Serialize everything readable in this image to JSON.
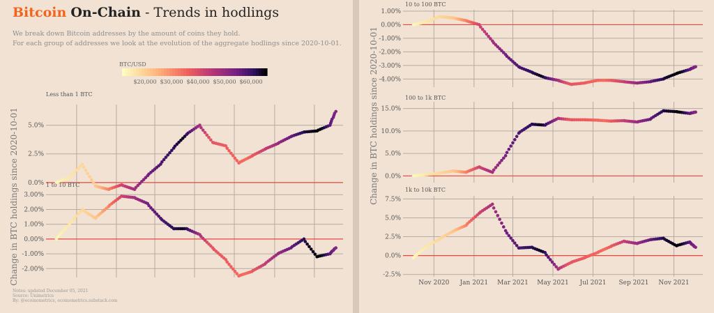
{
  "header": {
    "title_part1": "Bitcoin",
    "title_part2": "On-Chain",
    "title_part3": "- Trends in hodlings",
    "subtitle_line1": "We break down Bitcoin addresses by the amount of coins they hold.",
    "subtitle_line2": "For each group of addresses we look at the evolution of the aggregate hodlings since 2020-10-01."
  },
  "colorbar": {
    "label": "BTC/USD",
    "ticks": [
      "$20,000",
      "$30,000",
      "$40,000",
      "$50,000",
      "$60,000"
    ]
  },
  "ylabel": "Change in BTC holdings since 2020-10-01",
  "notes": {
    "line1": "Notes: updated December 05, 2021",
    "line2": "Source: Unimetrics",
    "line3": "By: @ecoinometrics, ecoinometrics.substack.com"
  },
  "colors": {
    "background": "#f1e2d3",
    "zero_line": "#e8453c",
    "grid": "#b5aba0",
    "accent": "#f0641e"
  },
  "chart_data": [
    {
      "type": "scatter",
      "title": "Less than 1 BTC",
      "ylim": [
        -0.8,
        6.8
      ],
      "yticks": [
        0,
        2.5,
        5
      ],
      "ytick_labels": [
        "0.0%",
        "2.5%",
        "5.0%"
      ],
      "color_by": "BTC/USD price",
      "x": [
        "2020-10-01",
        "2020-10-21",
        "2020-11-10",
        "2020-11-30",
        "2020-12-20",
        "2021-01-09",
        "2021-01-29",
        "2021-02-18",
        "2021-03-10",
        "2021-03-30",
        "2021-04-19",
        "2021-05-09",
        "2021-05-29",
        "2021-06-18",
        "2021-07-08",
        "2021-07-28",
        "2021-08-17",
        "2021-09-06",
        "2021-09-26",
        "2021-10-16",
        "2021-11-05",
        "2021-11-25",
        "2021-12-04"
      ],
      "y": [
        0.0,
        0.4,
        1.6,
        -0.3,
        -0.6,
        -0.2,
        -0.6,
        0.6,
        1.6,
        3.0,
        4.2,
        5.0,
        3.5,
        3.2,
        1.7,
        2.3,
        2.9,
        3.4,
        4.0,
        4.4,
        4.5,
        5.0,
        6.2
      ]
    },
    {
      "type": "scatter",
      "title": "1 to 10 BTC",
      "ylim": [
        -2.6,
        3.2
      ],
      "yticks": [
        -2,
        -1,
        0,
        1,
        2,
        3
      ],
      "ytick_labels": [
        "-2.00%",
        "-1.00%",
        "0.00%",
        "1.00%",
        "2.00%",
        "3.00%"
      ],
      "color_by": "BTC/USD price",
      "x": [
        "2020-10-01",
        "2020-10-21",
        "2020-11-10",
        "2020-11-30",
        "2020-12-20",
        "2021-01-09",
        "2021-01-29",
        "2021-02-18",
        "2021-03-10",
        "2021-03-30",
        "2021-04-19",
        "2021-05-09",
        "2021-05-29",
        "2021-06-18",
        "2021-07-08",
        "2021-07-28",
        "2021-08-17",
        "2021-09-06",
        "2021-09-26",
        "2021-10-16",
        "2021-11-05",
        "2021-11-25",
        "2021-12-04"
      ],
      "y": [
        0.0,
        1.0,
        2.0,
        1.4,
        2.2,
        2.9,
        2.8,
        2.4,
        1.4,
        0.7,
        0.7,
        0.3,
        -0.6,
        -1.4,
        -2.5,
        -2.2,
        -1.7,
        -1.0,
        -0.6,
        0.0,
        -1.2,
        -1.0,
        -0.6
      ]
    },
    {
      "type": "scatter",
      "title": "10 to 100 BTC",
      "ylim": [
        -4.6,
        1.1
      ],
      "yticks": [
        1,
        0,
        -1,
        -2,
        -3,
        -4
      ],
      "ytick_labels": [
        "1.00%",
        "0.00%",
        "-1.00%",
        "-2.00%",
        "-3.00%",
        "-4.00%"
      ],
      "color_by": "BTC/USD price",
      "x": [
        "2020-10-01",
        "2020-10-21",
        "2020-11-10",
        "2020-11-30",
        "2020-12-20",
        "2021-01-09",
        "2021-01-29",
        "2021-02-18",
        "2021-03-10",
        "2021-03-30",
        "2021-04-19",
        "2021-05-09",
        "2021-05-29",
        "2021-06-18",
        "2021-07-08",
        "2021-07-28",
        "2021-08-17",
        "2021-09-06",
        "2021-09-26",
        "2021-10-16",
        "2021-11-05",
        "2021-11-25",
        "2021-12-04"
      ],
      "y": [
        0.0,
        0.2,
        0.6,
        0.5,
        0.3,
        0.0,
        -1.2,
        -2.2,
        -3.1,
        -3.5,
        -3.9,
        -4.1,
        -4.4,
        -4.3,
        -4.1,
        -4.1,
        -4.2,
        -4.3,
        -4.2,
        -4.0,
        -3.6,
        -3.3,
        -3.1
      ]
    },
    {
      "type": "scatter",
      "title": "100 to 1k BTC",
      "ylim": [
        -1.5,
        16.5
      ],
      "yticks": [
        0,
        5,
        10,
        15
      ],
      "ytick_labels": [
        "0.0%",
        "5.0%",
        "10.0%",
        "15.0%"
      ],
      "color_by": "BTC/USD price",
      "x": [
        "2020-10-01",
        "2020-10-21",
        "2020-11-10",
        "2020-11-30",
        "2020-12-20",
        "2021-01-09",
        "2021-01-29",
        "2021-02-18",
        "2021-03-10",
        "2021-03-30",
        "2021-04-19",
        "2021-05-09",
        "2021-05-29",
        "2021-06-18",
        "2021-07-08",
        "2021-07-28",
        "2021-08-17",
        "2021-09-06",
        "2021-09-26",
        "2021-10-16",
        "2021-11-05",
        "2021-11-25",
        "2021-12-04"
      ],
      "y": [
        0.0,
        0.3,
        0.6,
        1.1,
        0.8,
        2.0,
        0.8,
        4.5,
        9.5,
        11.5,
        11.3,
        12.8,
        12.5,
        12.5,
        12.4,
        12.2,
        12.3,
        12.0,
        12.6,
        14.5,
        14.3,
        13.9,
        14.2
      ]
    },
    {
      "type": "scatter",
      "title": "1k to 10k BTC",
      "ylim": [
        -2.8,
        7.9
      ],
      "yticks": [
        -2.5,
        0,
        2.5,
        5,
        7.5
      ],
      "ytick_labels": [
        "-2.5%",
        "0.0%",
        "2.5%",
        "5.0%",
        "7.5%"
      ],
      "x_tick_labels": [
        "Nov 2020",
        "Jan 2021",
        "Mar 2021",
        "May 2021",
        "Jul 2021",
        "Sep 2021",
        "Nov 2021"
      ],
      "color_by": "BTC/USD price",
      "x": [
        "2020-10-01",
        "2020-10-21",
        "2020-11-10",
        "2020-11-30",
        "2020-12-20",
        "2021-01-09",
        "2021-01-29",
        "2021-02-18",
        "2021-03-10",
        "2021-03-30",
        "2021-04-19",
        "2021-05-09",
        "2021-05-29",
        "2021-06-18",
        "2021-07-08",
        "2021-07-28",
        "2021-08-17",
        "2021-09-06",
        "2021-09-26",
        "2021-10-16",
        "2021-11-05",
        "2021-11-25",
        "2021-12-04"
      ],
      "y": [
        -0.3,
        1.2,
        2.2,
        3.2,
        4.0,
        5.6,
        6.8,
        3.3,
        1.0,
        1.1,
        0.4,
        -1.8,
        -0.9,
        -0.3,
        0.4,
        1.2,
        1.9,
        1.6,
        2.1,
        2.3,
        1.3,
        1.8,
        1.1
      ]
    }
  ]
}
